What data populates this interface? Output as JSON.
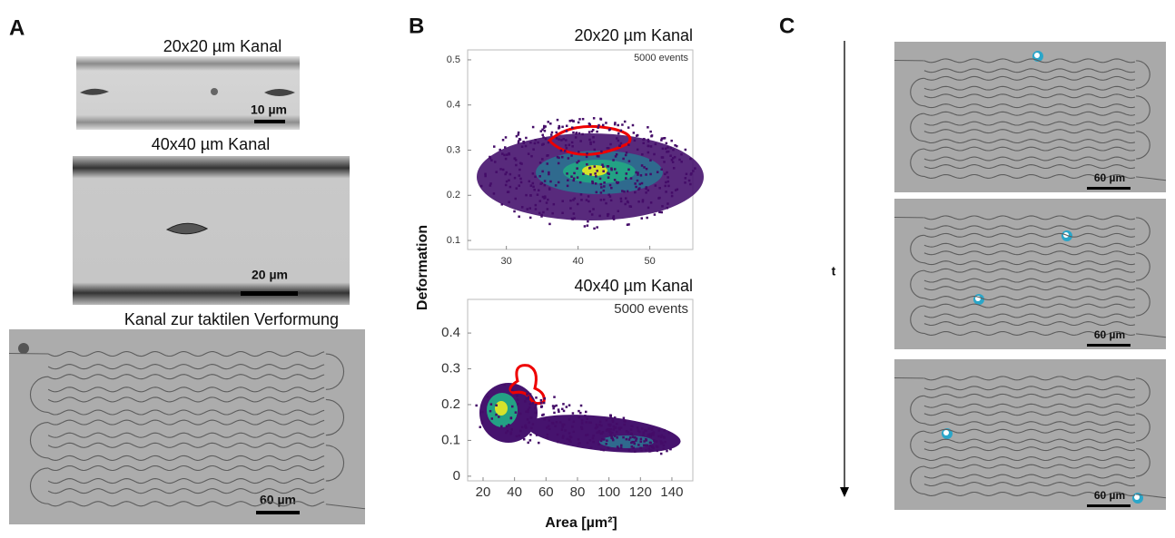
{
  "panels": {
    "A": {
      "label": "A",
      "images": [
        {
          "title": "20x20 µm Kanal",
          "scale_bar": "10 µm"
        },
        {
          "title": "40x40 µm Kanal",
          "scale_bar": "20 µm"
        },
        {
          "title": "Kanal zur taktilen Verformung",
          "scale_bar": "60 µm"
        }
      ]
    },
    "B": {
      "label": "B",
      "y_label": "Deformation",
      "x_label": "Area [µm²]",
      "plots": [
        {
          "title": "20x20 µm Kanal",
          "annotation": "5000 events",
          "xlim": [
            24.6,
            56
          ],
          "xticks": [
            30,
            40,
            50
          ],
          "ylim": [
            0.08,
            0.522
          ],
          "yticks": [
            0.1,
            0.2,
            0.3,
            0.4,
            0.5
          ]
        },
        {
          "title": "40x40 µm Kanal",
          "annotation": "5000 events",
          "xlim": [
            10.2,
            153.3
          ],
          "xticks": [
            20,
            40,
            60,
            80,
            100,
            120,
            140
          ],
          "ylim": [
            -0.013,
            0.494
          ],
          "yticks": [
            0,
            0.1,
            0.2,
            0.3,
            0.4
          ]
        }
      ]
    },
    "C": {
      "label": "C",
      "axis_label": "t",
      "scale_bars": [
        "60 µm",
        "60 µm",
        "60 µm"
      ]
    }
  }
}
